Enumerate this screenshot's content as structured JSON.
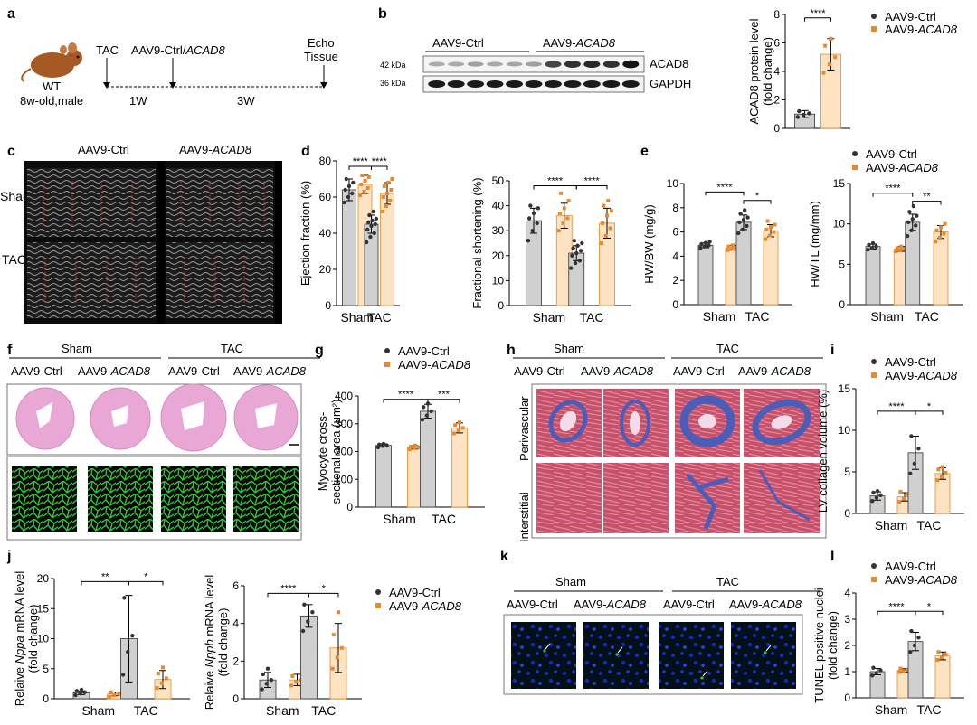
{
  "colors": {
    "ctrl_fill": "#d0d0d0",
    "acad8_fill": "#fde3c2",
    "acad8_dot": "#e8892b",
    "ctrl_dot": "#333333",
    "mouse_body": "#a55a24",
    "he_stain": "#e9a7d6",
    "wga_green": "#33c233",
    "masson_red": "#c7506b",
    "masson_blue": "#4a5db8",
    "tunel_blue": "#1428b8"
  },
  "panel_letters": [
    "a",
    "b",
    "c",
    "d",
    "e",
    "f",
    "g",
    "h",
    "i",
    "j",
    "k",
    "l"
  ],
  "legend": {
    "ctrl": "AAV9-Ctrl",
    "acad8_prefix": "AAV9-",
    "acad8_gene": "ACAD8"
  },
  "groups": {
    "sham": "Sham",
    "tac": "TAC"
  },
  "panel_a": {
    "mouse_label_1": "WT",
    "mouse_label_2": "8w-old,male",
    "tac": "TAC",
    "injection_prefix": "AAV9-Ctrl/",
    "injection_gene": "ACAD8",
    "endpoint_1": "Echo",
    "endpoint_2": "Tissue",
    "interval_1": "1W",
    "interval_2": "3W"
  },
  "panel_b": {
    "group_ctrl": "AAV9-Ctrl",
    "group_acad8_prefix": "AAV9-",
    "group_acad8_gene": "ACAD8",
    "band_1_size": "42 kDa",
    "band_2_size": "36 kDa",
    "band_1_name": "ACAD8",
    "band_2_name": "GAPDH",
    "band_1_intensity": [
      0.2,
      0.2,
      0.25,
      0.2,
      0.22,
      0.25,
      0.7,
      0.8,
      0.85,
      0.8,
      0.95
    ]
  },
  "panel_c": {
    "group_ctrl": "AAV9-Ctrl",
    "group_acad8_prefix": "AAV9-",
    "group_acad8_gene": "ACAD8"
  },
  "panel_f": {
    "group_ctrl": "AAV9-Ctrl",
    "group_acad8_prefix": "AAV9-",
    "group_acad8_gene": "ACAD8"
  },
  "panel_h": {
    "group_ctrl": "AAV9-Ctrl",
    "group_acad8_prefix": "AAV9-",
    "group_acad8_gene": "ACAD8",
    "row_1": "Perivascular",
    "row_2": "Interstitial"
  },
  "panel_k": {
    "group_ctrl": "AAV9-Ctrl",
    "group_acad8_prefix": "AAV9-",
    "group_acad8_gene": "ACAD8"
  },
  "chart_data": [
    {
      "id": "b",
      "type": "bar",
      "categories": [
        "AAV9-Ctrl",
        "AAV9-ACAD8"
      ],
      "ylabel_lines": [
        "ACAD8 protein level",
        "(fold change)"
      ],
      "yticks": [
        0,
        2,
        4,
        6,
        8
      ],
      "ylim": [
        0,
        8
      ],
      "means": [
        1.0,
        5.2
      ],
      "errors": [
        0.25,
        1.1
      ],
      "points": [
        [
          0.8,
          0.95,
          1.05,
          1.2
        ],
        [
          3.9,
          4.5,
          5.0,
          5.8,
          6.3
        ]
      ],
      "significance": [
        {
          "bars": [
            0,
            1
          ],
          "label": "****"
        }
      ]
    },
    {
      "id": "d1",
      "type": "bar",
      "grouped": true,
      "groups": [
        "Sham",
        "TAC"
      ],
      "ylabel_lines": [
        "Ejection fraction (%)"
      ],
      "yticks": [
        0,
        20,
        40,
        60,
        80
      ],
      "ylim": [
        0,
        80
      ],
      "series": [
        {
          "means": [
            64,
            45
          ],
          "errors": [
            6,
            5
          ]
        },
        {
          "means": [
            67,
            62
          ],
          "errors": [
            5,
            6
          ]
        }
      ],
      "points": [
        [
          [
            57,
            60,
            62,
            64,
            66,
            68,
            70
          ],
          [
            35,
            38,
            40,
            42,
            44,
            45,
            46,
            47,
            48,
            50,
            52
          ]
        ],
        [
          [
            61,
            63,
            65,
            67,
            69,
            71,
            72
          ],
          [
            52,
            55,
            58,
            60,
            62,
            64,
            66,
            68,
            70
          ]
        ]
      ],
      "significance": [
        {
          "bars": [
            0,
            2
          ],
          "label": "****",
          "y": 77
        },
        {
          "bars": [
            2,
            3
          ],
          "label": "****",
          "y": 77
        }
      ]
    },
    {
      "id": "d2",
      "type": "bar",
      "grouped": true,
      "groups": [
        "Sham",
        "TAC"
      ],
      "ylabel_lines": [
        "Fractional shortening (%)"
      ],
      "yticks": [
        0,
        10,
        20,
        30,
        40,
        50
      ],
      "ylim": [
        0,
        50
      ],
      "series": [
        {
          "means": [
            34,
            21
          ],
          "errors": [
            5,
            3
          ]
        },
        {
          "means": [
            36,
            33
          ],
          "errors": [
            5,
            6
          ]
        }
      ],
      "points": [
        [
          [
            26,
            30,
            33,
            35,
            37,
            39,
            40
          ],
          [
            15,
            17,
            18,
            20,
            21,
            22,
            23,
            24,
            25,
            26
          ]
        ],
        [
          [
            30,
            33,
            35,
            37,
            39,
            42,
            45
          ],
          [
            25,
            28,
            31,
            33,
            36,
            38,
            40,
            42
          ]
        ]
      ],
      "significance": [
        {
          "bars": [
            0,
            2
          ],
          "label": "****",
          "y": 48
        },
        {
          "bars": [
            2,
            3
          ],
          "label": "****",
          "y": 48
        }
      ]
    },
    {
      "id": "e1",
      "type": "bar",
      "grouped": true,
      "groups": [
        "Sham",
        "TAC"
      ],
      "ylabel_lines": [
        "HW/BW (mg/g)"
      ],
      "yticks": [
        0,
        2,
        4,
        6,
        8,
        10
      ],
      "ylim": [
        0,
        10
      ],
      "series": [
        {
          "means": [
            4.9,
            6.8
          ],
          "errors": [
            0.2,
            0.6
          ]
        },
        {
          "means": [
            4.7,
            6.1
          ],
          "errors": [
            0.2,
            0.5
          ]
        }
      ],
      "points": [
        [
          [
            4.7,
            4.8,
            4.9,
            5.0,
            5.1,
            5.2
          ],
          [
            5.9,
            6.2,
            6.5,
            6.8,
            7.0,
            7.2,
            7.5,
            7.8
          ]
        ],
        [
          [
            4.5,
            4.6,
            4.7,
            4.8,
            4.9
          ],
          [
            5.4,
            5.7,
            6.0,
            6.2,
            6.4,
            6.6,
            6.9
          ]
        ]
      ],
      "significance": [
        {
          "bars": [
            0,
            2
          ],
          "label": "****",
          "y": 9.3
        },
        {
          "bars": [
            2,
            3
          ],
          "label": "*",
          "y": 8.6
        }
      ]
    },
    {
      "id": "e2",
      "type": "bar",
      "grouped": true,
      "groups": [
        "Sham",
        "TAC"
      ],
      "ylabel_lines": [
        "HW/TL (mg/mm)"
      ],
      "yticks": [
        0,
        5,
        10,
        15
      ],
      "ylim": [
        0,
        15
      ],
      "series": [
        {
          "means": [
            7.2,
            10.2
          ],
          "errors": [
            0.3,
            1.0
          ]
        },
        {
          "means": [
            6.9,
            9.0
          ],
          "errors": [
            0.3,
            0.8
          ]
        }
      ],
      "points": [
        [
          [
            6.8,
            7.0,
            7.2,
            7.4,
            7.6
          ],
          [
            8.5,
            9.2,
            9.8,
            10.2,
            10.6,
            11.0,
            11.5,
            12.2
          ]
        ],
        [
          [
            6.6,
            6.8,
            6.9,
            7.0,
            7.2
          ],
          [
            7.8,
            8.3,
            8.8,
            9.2,
            9.6,
            10.0
          ]
        ]
      ],
      "significance": [
        {
          "bars": [
            0,
            2
          ],
          "label": "****",
          "y": 13.8
        },
        {
          "bars": [
            2,
            3
          ],
          "label": "**",
          "y": 12.8
        }
      ]
    },
    {
      "id": "g",
      "type": "bar",
      "grouped": true,
      "groups": [
        "Sham",
        "TAC"
      ],
      "ylabel_lines": [
        "Myocyte cross-",
        "sectional area (μm²)"
      ],
      "yticks": [
        0,
        100,
        200,
        300,
        400
      ],
      "ylim": [
        0,
        400
      ],
      "series": [
        {
          "means": [
            222,
            345
          ],
          "errors": [
            6,
            25
          ]
        },
        {
          "means": [
            215,
            285
          ],
          "errors": [
            6,
            18
          ]
        }
      ],
      "points": [
        [
          [
            215,
            220,
            222,
            225,
            228
          ],
          [
            315,
            330,
            345,
            360,
            372
          ]
        ],
        [
          [
            208,
            212,
            215,
            218,
            222
          ],
          [
            265,
            275,
            285,
            295,
            305
          ]
        ]
      ],
      "significance": [
        {
          "bars": [
            0,
            2
          ],
          "label": "****",
          "y": 388
        },
        {
          "bars": [
            2,
            3
          ],
          "label": "***",
          "y": 388
        }
      ]
    },
    {
      "id": "i",
      "type": "bar",
      "grouped": true,
      "groups": [
        "Sham",
        "TAC"
      ],
      "ylabel_lines": [
        "LV collagen volume (%)"
      ],
      "yticks": [
        0,
        5,
        10,
        15
      ],
      "ylim": [
        0,
        15
      ],
      "series": [
        {
          "means": [
            2.1,
            7.3
          ],
          "errors": [
            0.5,
            2.0
          ]
        },
        {
          "means": [
            2.0,
            4.8
          ],
          "errors": [
            0.5,
            0.7
          ]
        }
      ],
      "points": [
        [
          [
            1.5,
            1.9,
            2.2,
            2.5,
            2.7
          ],
          [
            4.8,
            6.0,
            7.8,
            9.3
          ]
        ],
        [
          [
            1.4,
            1.8,
            2.3,
            2.6
          ],
          [
            4.0,
            4.4,
            4.9,
            5.3,
            5.6
          ]
        ]
      ],
      "significance": [
        {
          "bars": [
            0,
            2
          ],
          "label": "****",
          "y": 12.3
        },
        {
          "bars": [
            2,
            3
          ],
          "label": "*",
          "y": 12.3
        }
      ]
    },
    {
      "id": "j1",
      "type": "bar",
      "grouped": true,
      "groups": [
        "Sham",
        "TAC"
      ],
      "ylabel_lines": [
        "Relaive ",
        "Nppa",
        " mRNA level",
        "(fold change)"
      ],
      "yticks": [
        0,
        5,
        10,
        15,
        20
      ],
      "ylim": [
        0,
        20
      ],
      "series": [
        {
          "means": [
            1.0,
            10.0
          ],
          "errors": [
            0.3,
            7.2
          ]
        },
        {
          "means": [
            0.8,
            3.2
          ],
          "errors": [
            0.3,
            1.5
          ]
        }
      ],
      "points": [
        [
          [
            0.6,
            0.9,
            1.1,
            1.3,
            1.5
          ],
          [
            4.0,
            7.8,
            10.5,
            16.8
          ]
        ],
        [
          [
            0.3,
            0.6,
            0.8,
            1.1
          ],
          [
            1.8,
            2.6,
            3.4,
            4.2,
            5.2
          ]
        ]
      ],
      "significance": [
        {
          "bars": [
            0,
            2
          ],
          "label": "**",
          "y": 19.5
        },
        {
          "bars": [
            2,
            3
          ],
          "label": "*",
          "y": 19.5
        }
      ]
    },
    {
      "id": "j2",
      "type": "bar",
      "grouped": true,
      "groups": [
        "Sham",
        "TAC"
      ],
      "ylabel_lines": [
        "Relaive ",
        "Nppb",
        " mRNA level",
        "(fold change)"
      ],
      "yticks": [
        0,
        2,
        4,
        6
      ],
      "ylim": [
        0,
        6
      ],
      "series": [
        {
          "means": [
            1.0,
            4.4
          ],
          "errors": [
            0.4,
            0.6
          ]
        },
        {
          "means": [
            1.0,
            2.7
          ],
          "errors": [
            0.3,
            1.3
          ]
        }
      ],
      "points": [
        [
          [
            0.5,
            0.8,
            1.0,
            1.3,
            1.6
          ],
          [
            3.6,
            4.1,
            4.6,
            5.0
          ]
        ],
        [
          [
            0.7,
            0.9,
            1.0,
            1.2
          ],
          [
            1.6,
            2.2,
            2.7,
            3.4,
            4.6
          ]
        ]
      ],
      "significance": [
        {
          "bars": [
            0,
            2
          ],
          "label": "****",
          "y": 5.6
        },
        {
          "bars": [
            2,
            3
          ],
          "label": "*",
          "y": 5.6
        }
      ]
    },
    {
      "id": "l",
      "type": "bar",
      "grouped": true,
      "groups": [
        "Sham",
        "TAC"
      ],
      "ylabel_lines": [
        "TUNEL positive nuclei",
        "(fold change)"
      ],
      "yticks": [
        0,
        1,
        2,
        3,
        4
      ],
      "ylim": [
        0,
        4
      ],
      "series": [
        {
          "means": [
            1.0,
            2.15
          ],
          "errors": [
            0.12,
            0.35
          ]
        },
        {
          "means": [
            1.05,
            1.6
          ],
          "errors": [
            0.06,
            0.15
          ]
        }
      ],
      "points": [
        [
          [
            0.85,
            0.95,
            1.05,
            1.15
          ],
          [
            1.75,
            2.0,
            2.3,
            2.55
          ]
        ],
        [
          [
            0.98,
            1.02,
            1.08,
            1.12
          ],
          [
            1.45,
            1.55,
            1.65,
            1.75
          ]
        ]
      ],
      "significance": [
        {
          "bars": [
            0,
            2
          ],
          "label": "****",
          "y": 3.3
        },
        {
          "bars": [
            2,
            3
          ],
          "label": "*",
          "y": 3.3
        }
      ]
    }
  ]
}
